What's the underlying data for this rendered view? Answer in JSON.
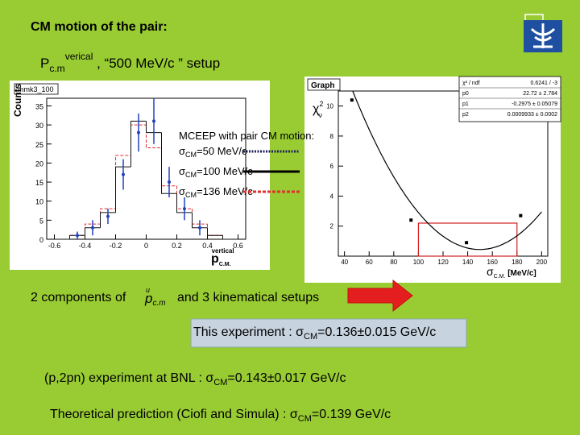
{
  "title": "CM motion of the pair:",
  "setup": {
    "p": "P",
    "sub": "c.m",
    "sup": "verical",
    "rest": " ,  “500 MeV/c ” setup"
  },
  "left_plot": {
    "name": "mmk3_100",
    "y_label": "Counts",
    "x_label": {
      "main": "p",
      "sub": "C.M.",
      "sup": "vertical"
    },
    "xlim": [
      -0.65,
      0.65
    ],
    "xticks": [
      -0.6,
      -0.4,
      -0.2,
      0,
      0.2,
      0.4,
      0.6
    ],
    "ylim": [
      0,
      37
    ],
    "yticks": [
      0,
      5,
      10,
      15,
      20,
      25,
      30,
      35
    ],
    "bins": [
      -0.6,
      -0.5,
      -0.4,
      -0.3,
      -0.2,
      -0.1,
      0,
      0.1,
      0.2,
      0.3,
      0.4,
      0.5,
      0.6
    ],
    "histograms": [
      {
        "color": "#e03030",
        "style": "dashed",
        "values": [
          0,
          1,
          4,
          8,
          22,
          30,
          24,
          14,
          8,
          4,
          1,
          0
        ]
      },
      {
        "color": "#111111",
        "style": "solid",
        "values": [
          0,
          1,
          3,
          7,
          19,
          31,
          28,
          12,
          7,
          3,
          1,
          0
        ]
      }
    ],
    "points": {
      "color": "#2040c0",
      "x": [
        -0.45,
        -0.35,
        -0.25,
        -0.15,
        -0.05,
        0.05,
        0.15,
        0.25,
        0.35
      ],
      "values": [
        1,
        3,
        6,
        17,
        28,
        31,
        15,
        8,
        3
      ],
      "errors": [
        1,
        2,
        2,
        4,
        5,
        6,
        4,
        3,
        2
      ]
    }
  },
  "legend": {
    "title": "MCEEP with pair CM motion:",
    "items": [
      {
        "sym": "σ",
        "sub": "CM",
        "text": "=50 MeV/c",
        "color": "#20205a",
        "style": "dotted"
      },
      {
        "sym": "σ",
        "sub": "CM",
        "text": "=100 MeV/c",
        "color": "#000000",
        "style": "solid"
      },
      {
        "sym": "σ",
        "sub": "CM",
        "text": "=136 MeV/c",
        "color": "#e03030",
        "style": "dashed"
      }
    ]
  },
  "right_plot": {
    "title": "Graph",
    "stats": [
      {
        "name": "χ² / ndf",
        "label": "0.6241 / -3"
      },
      {
        "name": "p0",
        "value": 22.72,
        "label": "22.72 ± 2.784"
      },
      {
        "name": "p1",
        "value": -0.2975,
        "label": "-0.2975 ± 0.05079"
      },
      {
        "name": "p2",
        "value": 0.0009933,
        "label": "0.0009933 ± 0.0002"
      }
    ],
    "y_label": {
      "main": "χ",
      "sup": "2",
      "sub": "ν"
    },
    "x_label": {
      "main": "σ",
      "sub": "C.M.",
      "rest": " [MeV/c]"
    },
    "xlim": [
      35,
      205
    ],
    "xticks": [
      40,
      60,
      80,
      100,
      120,
      140,
      160,
      180,
      200
    ],
    "ylim": [
      0,
      11
    ],
    "yticks": [
      2,
      4,
      6,
      8,
      10
    ],
    "points": {
      "x": [
        46,
        94,
        139,
        183
      ],
      "values": [
        10.4,
        2.4,
        0.9,
        2.7
      ]
    }
  },
  "components": {
    "pre": "2 components of",
    "vec": "u",
    "p": "p",
    "sub": "c.m",
    "post": "and 3 kinematical setups"
  },
  "this_experiment": {
    "pre": "This  experiment : σ",
    "sub": "CM",
    "post": "=0.136±0.015 GeV/c"
  },
  "bnl": {
    "pre": "(p,2pn) experiment at BNL : σ",
    "sub": "CM",
    "post": "=0.143±0.017 GeV/c"
  },
  "theory": {
    "pre": "Theoretical prediction (Ciofi and Simula) : σ",
    "sub": "CM",
    "post": "=0.139 GeV/c"
  }
}
